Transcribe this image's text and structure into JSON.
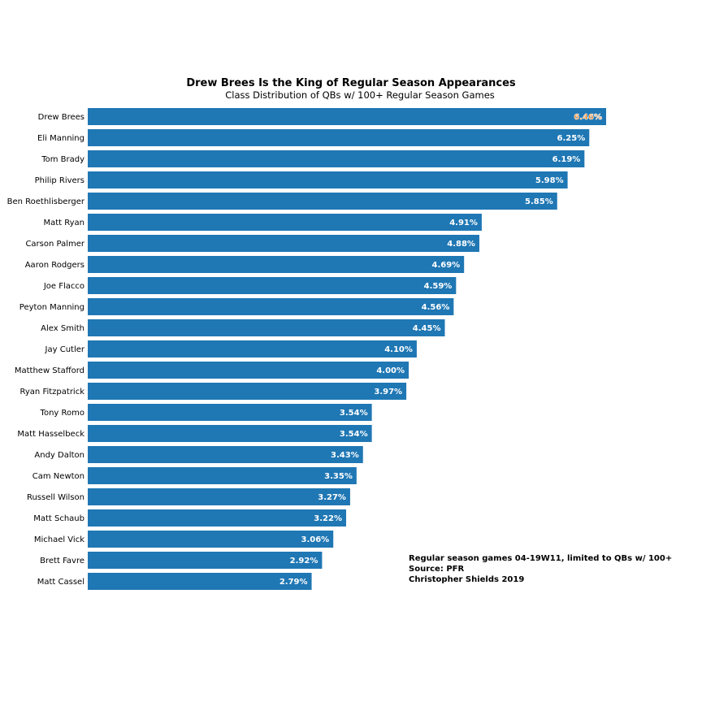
{
  "chart_data": {
    "type": "bar",
    "orientation": "horizontal",
    "title": "Drew Brees Is the King of Regular Season Appearances",
    "subtitle": "Class Distribution of QBs w/ 100+ Regular Season Games",
    "xlim": [
      0,
      6.8
    ],
    "grid": false,
    "categories": [
      "Drew Brees",
      "Eli Manning",
      "Tom Brady",
      "Philip Rivers",
      "Ben Roethlisberger",
      "Matt Ryan",
      "Carson Palmer",
      "Aaron Rodgers",
      "Joe Flacco",
      "Peyton Manning",
      "Alex Smith",
      "Jay Cutler",
      "Matthew Stafford",
      "Ryan Fitzpatrick",
      "Tony Romo",
      "Matt Hasselbeck",
      "Andy Dalton",
      "Cam Newton",
      "Russell Wilson",
      "Matt Schaub",
      "Michael Vick",
      "Brett Favre",
      "Matt Cassel"
    ],
    "values": [
      6.46,
      6.25,
      6.19,
      5.98,
      5.85,
      4.91,
      4.88,
      4.69,
      4.59,
      4.56,
      4.45,
      4.1,
      4.0,
      3.97,
      3.54,
      3.54,
      3.43,
      3.35,
      3.27,
      3.22,
      3.06,
      2.92,
      2.79
    ],
    "data_labels": [
      "6.46%",
      "6.25%",
      "6.19%",
      "5.98%",
      "5.85%",
      "4.91%",
      "4.88%",
      "4.69%",
      "4.59%",
      "4.56%",
      "4.45%",
      "4.10%",
      "4.00%",
      "3.97%",
      "3.54%",
      "3.54%",
      "3.43%",
      "3.35%",
      "3.27%",
      "3.22%",
      "3.06%",
      "2.92%",
      "2.79%"
    ],
    "highlight_index": 0,
    "annotation": [
      "Regular season games 04-19W11, limited to QBs w/ 100+",
      "Source: PFR",
      "Christopher Shields 2019"
    ]
  },
  "colors": {
    "bar": "#1f77b4",
    "label": "#ffffff",
    "highlight_label": "#ff7f0e",
    "text": "#000000"
  }
}
